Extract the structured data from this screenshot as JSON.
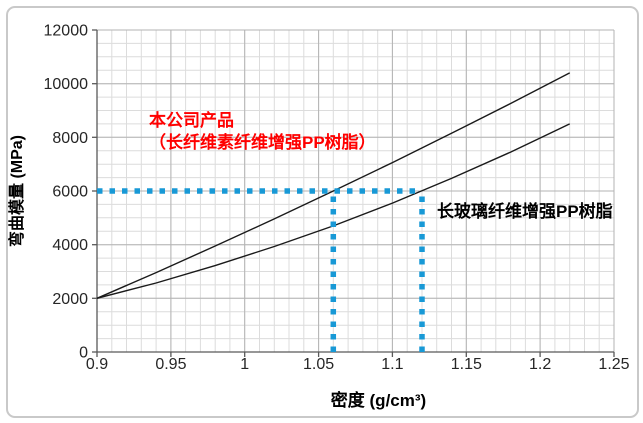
{
  "chart_data": {
    "type": "line",
    "title": "",
    "xlabel": "密度 (g/cm³)",
    "ylabel": "弯曲模量 (MPa)",
    "xlim": [
      0.9,
      1.25
    ],
    "ylim": [
      0,
      12000
    ],
    "x_major_step": 0.05,
    "x_minor_step": 0.01,
    "y_major_step": 2000,
    "y_minor_step": 500,
    "x_ticks": [
      "0.9",
      "0.95",
      "1",
      "1.05",
      "1.1",
      "1.15",
      "1.2",
      "1.25"
    ],
    "y_ticks": [
      "0",
      "2000",
      "4000",
      "6000",
      "8000",
      "10000",
      "12000"
    ],
    "grid": "major+minor",
    "legend": "none",
    "series": [
      {
        "name": "本公司产品（长纤维素纤维增强PP树脂）",
        "color": "#1a1a1a",
        "points": [
          [
            0.9,
            2000
          ],
          [
            0.94,
            2960
          ],
          [
            0.98,
            3950
          ],
          [
            1.02,
            4960
          ],
          [
            1.06,
            6000
          ],
          [
            1.1,
            7060
          ],
          [
            1.14,
            8150
          ],
          [
            1.18,
            9260
          ],
          [
            1.22,
            10400
          ]
        ]
      },
      {
        "name": "长玻璃纤维增强PP树脂",
        "color": "#1a1a1a",
        "points": [
          [
            0.9,
            2000
          ],
          [
            0.94,
            2570
          ],
          [
            0.98,
            3220
          ],
          [
            1.02,
            3930
          ],
          [
            1.06,
            4700
          ],
          [
            1.1,
            5550
          ],
          [
            1.14,
            6470
          ],
          [
            1.18,
            7450
          ],
          [
            1.22,
            8500
          ]
        ]
      }
    ],
    "guides": {
      "color": "#1899d6",
      "horizontal": {
        "y": 6000,
        "x_from": 0.9,
        "x_to": 1.12
      },
      "verticals": [
        {
          "x": 1.06,
          "y_from": 0,
          "y_to": 6000
        },
        {
          "x": 1.12,
          "y_from": 0,
          "y_to": 6000
        }
      ]
    },
    "annotations": [
      {
        "line1": "本公司产品",
        "line2": "（长纤维素纤维增强PP树脂）",
        "color": "#ff0000"
      },
      {
        "text": "长玻璃纤维增强PP树脂",
        "color": "#000000"
      }
    ],
    "grid_colors": {
      "minor": "#dcdcdc",
      "major": "#b3b3b3",
      "axis": "#595959"
    }
  }
}
